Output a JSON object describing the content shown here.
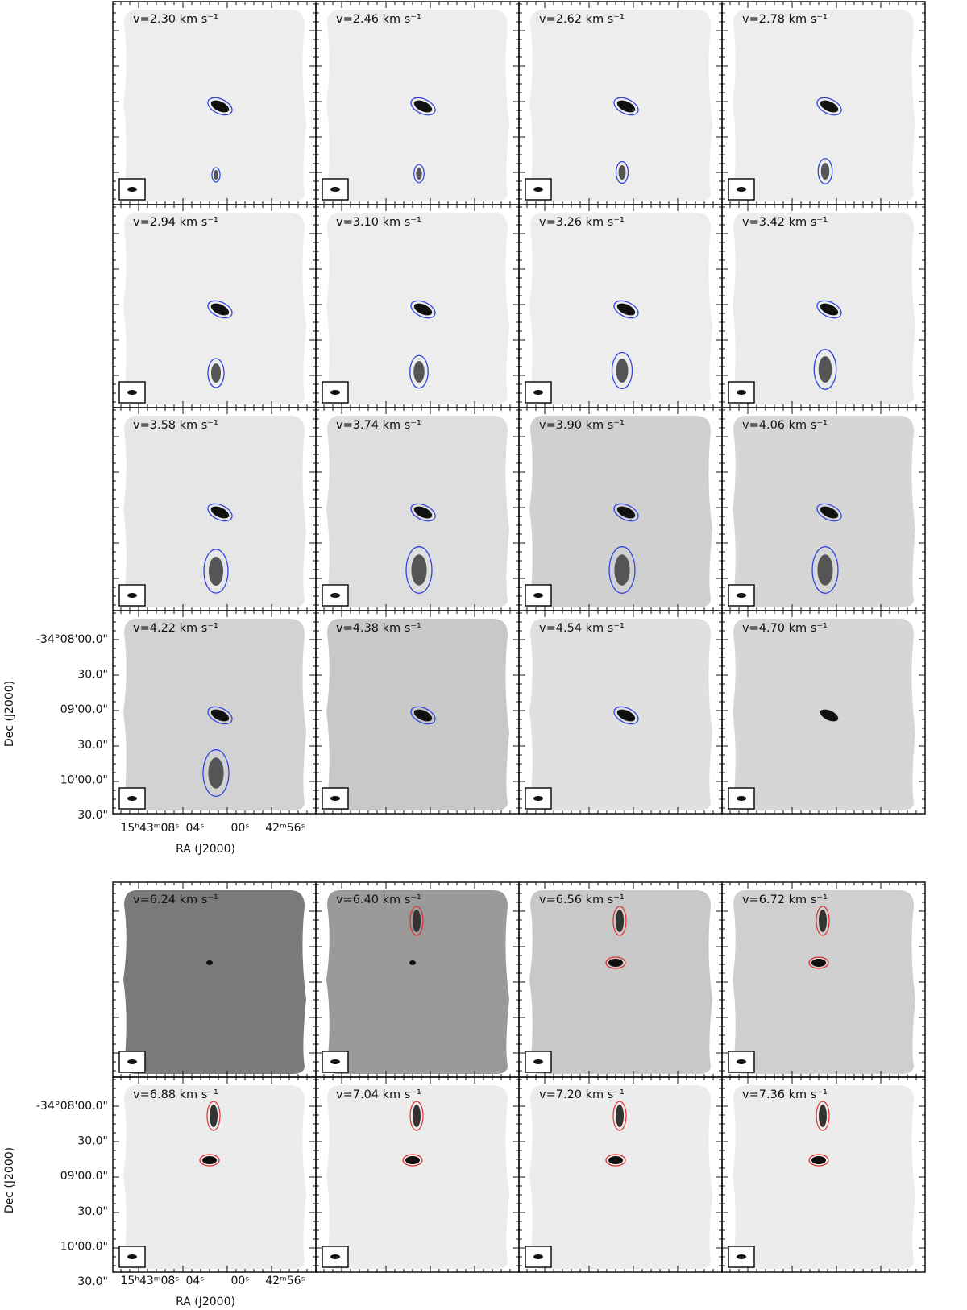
{
  "top_block": {
    "panels": [
      "v=2.30 km s⁻¹",
      "v=2.46 km s⁻¹",
      "v=2.62 km s⁻¹",
      "v=2.78 km s⁻¹",
      "v=2.94 km s⁻¹",
      "v=3.10 km s⁻¹",
      "v=3.26 km s⁻¹",
      "v=3.42 km s⁻¹",
      "v=3.58 km s⁻¹",
      "v=3.74 km s⁻¹",
      "v=3.90 km s⁻¹",
      "v=4.06 km s⁻¹",
      "v=4.22 km s⁻¹",
      "v=4.38 km s⁻¹",
      "v=4.54 km s⁻¹",
      "v=4.70 km s⁻¹"
    ]
  },
  "bottom_block": {
    "panels": [
      "v=6.24 km s⁻¹",
      "v=6.40 km s⁻¹",
      "v=6.56 km s⁻¹",
      "v=6.72 km s⁻¹",
      "v=6.88 km s⁻¹",
      "v=7.04 km s⁻¹",
      "v=7.20 km s⁻¹",
      "v=7.36 km s⁻¹"
    ]
  },
  "axes": {
    "dec_ticks": [
      "-34°08'00.0\"",
      "30.0\"",
      "09'00.0\"",
      "30.0\"",
      "10'00.0\"",
      "30.0\""
    ],
    "ra_ticks": [
      "15ʰ43ᵐ08ˢ",
      "04ˢ",
      "00ˢ",
      "42ᵐ56ˢ"
    ],
    "x_title": "RA (J2000)",
    "y_title": "Dec (J2000)"
  }
}
